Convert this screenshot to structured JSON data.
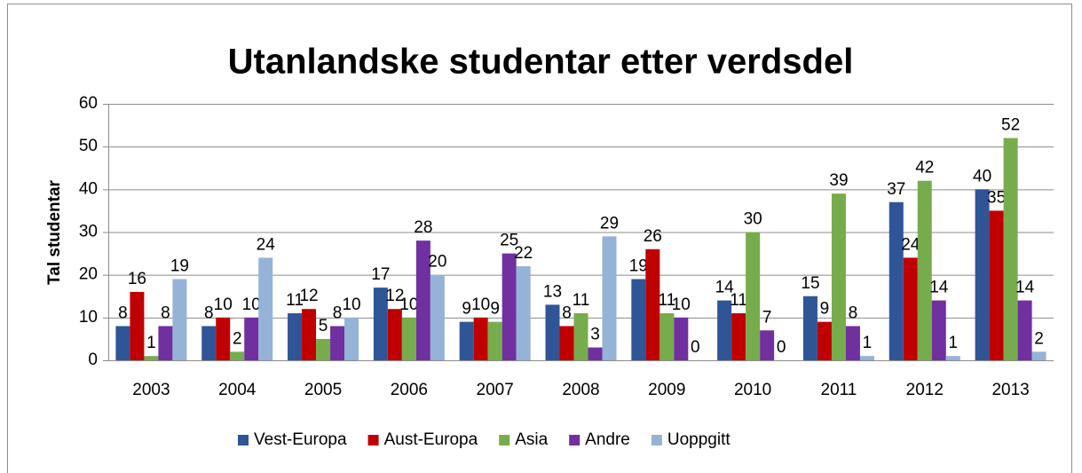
{
  "chart_data": {
    "type": "bar",
    "title": "Utanlandske studentar etter verdsdel",
    "y_label": "Tal studentar",
    "categories": [
      "2003",
      "2004",
      "2005",
      "2006",
      "2007",
      "2008",
      "2009",
      "2010",
      "2011",
      "2012",
      "2013"
    ],
    "series": [
      {
        "name": "Vest-Europa",
        "color": "#2f5597",
        "values": [
          8,
          8,
          11,
          17,
          9,
          13,
          19,
          14,
          15,
          37,
          40
        ]
      },
      {
        "name": "Aust-Europa",
        "color": "#c00000",
        "values": [
          16,
          10,
          12,
          12,
          10,
          8,
          26,
          11,
          9,
          24,
          35
        ]
      },
      {
        "name": "Asia",
        "color": "#77ac4c",
        "values": [
          1,
          2,
          5,
          10,
          9,
          11,
          11,
          30,
          39,
          42,
          52
        ]
      },
      {
        "name": "Andre",
        "color": "#7030a0",
        "values": [
          8,
          10,
          8,
          28,
          25,
          3,
          10,
          7,
          8,
          14,
          14
        ]
      },
      {
        "name": "Uoppgitt",
        "color": "#95b3d7",
        "values": [
          19,
          24,
          10,
          20,
          22,
          29,
          0,
          0,
          1,
          1,
          2
        ]
      }
    ],
    "ylim": [
      0,
      60
    ],
    "yticks": [
      0,
      10,
      20,
      30,
      40,
      50,
      60
    ],
    "grid": true,
    "legend": "bottom"
  }
}
